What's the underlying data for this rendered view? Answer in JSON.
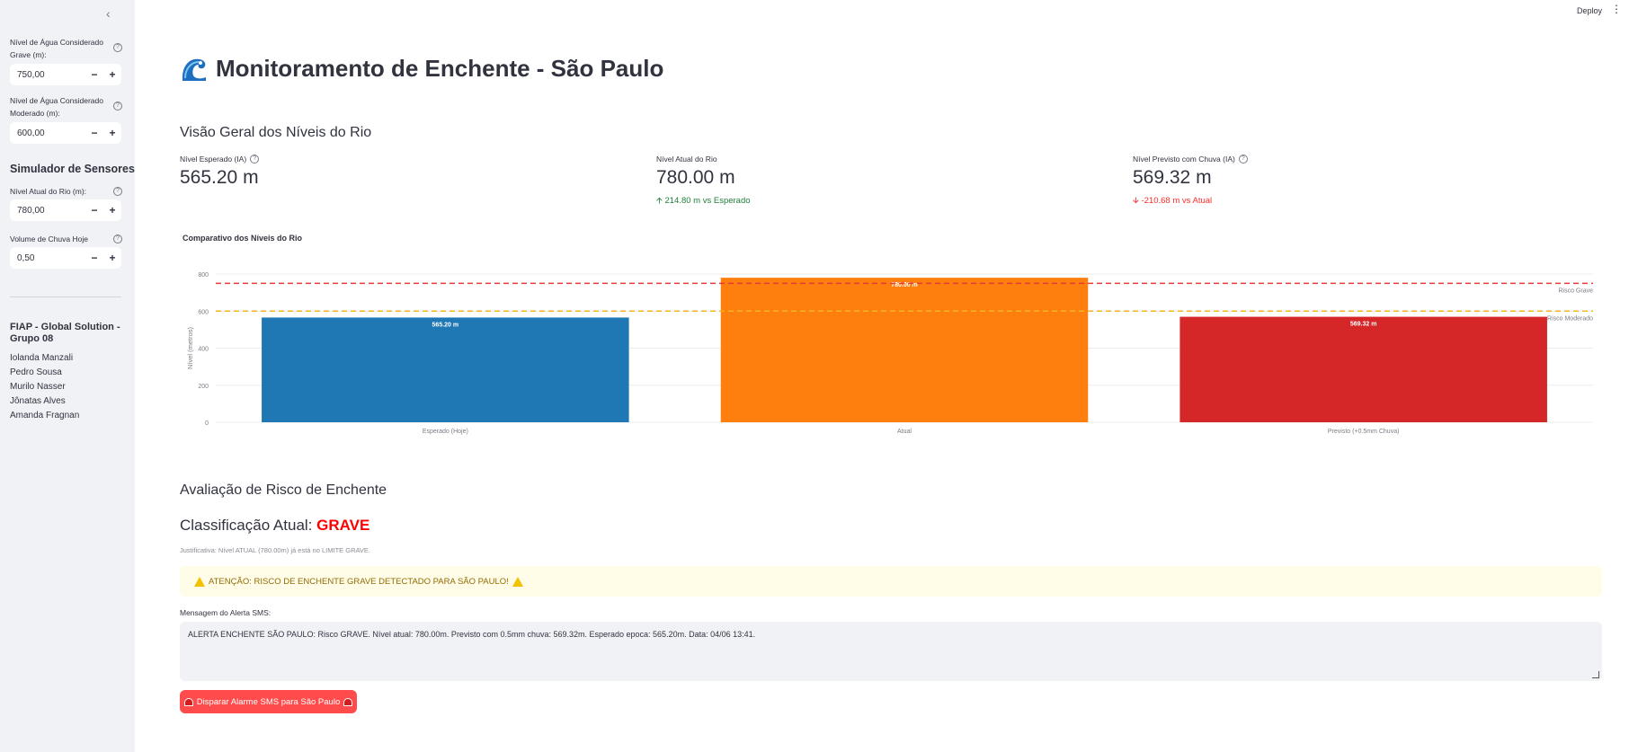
{
  "header": {
    "deploy_label": "Deploy",
    "menu_label": "⋮"
  },
  "sidebar": {
    "collapse_label": "‹",
    "grave_level": {
      "label": "Nível de Água Considerado Grave (m):",
      "value": "750,00"
    },
    "moderate_level": {
      "label": "Nível de Água Considerado Moderado (m):",
      "value": "600,00"
    },
    "simulator_title": "Simulador de Sensores",
    "river_level": {
      "label": "Nível Atual do Rio (m):",
      "value": "780,00"
    },
    "rain_volume": {
      "label": "Volume de Chuva Hoje (mm):",
      "value": "0,50"
    },
    "stepper_minus": "−",
    "stepper_plus": "+",
    "help_glyph": "?",
    "team_title": "FIAP - Global Solution - Grupo 08",
    "team_members": [
      "Iolanda Manzali",
      "Pedro Sousa",
      "Murilo Nasser",
      "Jônatas Alves",
      "Amanda Fragnan"
    ]
  },
  "main": {
    "title": "Monitoramento de Enchente - São Paulo",
    "overview_title": "Visão Geral dos Níveis do Rio",
    "metrics": [
      {
        "label": "Nível Esperado (IA)",
        "value": "565.20 m",
        "delta": ""
      },
      {
        "label": "Nível Atual do Rio",
        "value": "780.00 m",
        "delta": "214.80 m vs Esperado",
        "delta_dir": "up"
      },
      {
        "label": "Nível Previsto com Chuva (IA)",
        "value": "569.32 m",
        "delta": "-210.68 m vs Atual",
        "delta_dir": "down"
      }
    ],
    "risk_section_title": "Avaliação de Risco de Enchente",
    "risk_class_prefix": "Classificação Atual: ",
    "risk_class_value": "GRAVE",
    "justification": "Justificativa: Nível ATUAL (780.00m) já está no LIMITE GRAVE.",
    "alert_text": "ATENÇÃO: RISCO DE ENCHENTE GRAVE DETECTADO PARA SÃO PAULO!",
    "sms_label": "Mensagem do Alerta SMS:",
    "sms_message": "ALERTA ENCHENTE SÃO PAULO: Risco GRAVE. Nível atual: 780.00m. Previsto com 0.5mm chuva: 569.32m. Esperado epoca: 565.20m. Data: 04/06 13:41.",
    "sms_button": "Disparar Alarme SMS para São Paulo"
  },
  "chart_data": {
    "type": "bar",
    "title": "Comparativo dos Níveis do Rio",
    "ylabel": "Nível (metros)",
    "xlabel": "",
    "categories": [
      "Esperado (Hoje)",
      "Atual",
      "Previsto (+0.5mm Chuva)"
    ],
    "values": [
      565.2,
      780.0,
      569.32
    ],
    "data_labels": [
      "565.20 m",
      "780.00 m",
      "569.32 m"
    ],
    "colors": [
      "#1f77b4",
      "#ff7f0e",
      "#d62728"
    ],
    "ylim": [
      0,
      800
    ],
    "yticks": [
      0,
      200,
      400,
      600,
      800
    ],
    "grid": true,
    "reference_lines": [
      {
        "name": "Risco Grave",
        "value": 750,
        "color": "#e63b3b"
      },
      {
        "name": "Risco Moderado",
        "value": 600,
        "color": "#f0b429"
      }
    ]
  }
}
